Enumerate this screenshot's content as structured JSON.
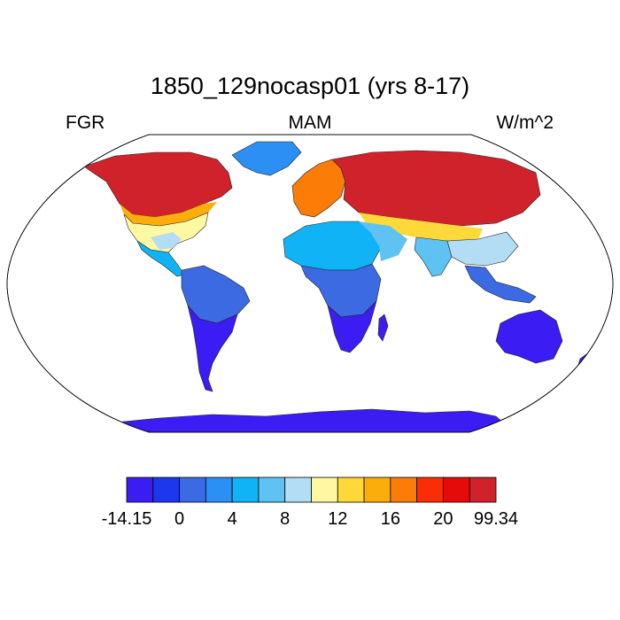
{
  "chart_data": {
    "type": "heatmap",
    "title": "1850_129nocasp01 (yrs 8-17)",
    "subtitle_left": "FGR",
    "subtitle_center": "MAM",
    "subtitle_right": "W/m^2",
    "projection": "Robinson",
    "colorbar": {
      "min_label": "-14.15",
      "max_label": "99.34",
      "boundaries": [
        -14.15,
        -2,
        0,
        2,
        4,
        6,
        8,
        10,
        12,
        14,
        16,
        18,
        20,
        22,
        99.34
      ],
      "tick_labels": [
        "-14.15",
        "0",
        "4",
        "8",
        "12",
        "16",
        "20",
        "99.34"
      ],
      "colors": [
        "#3b1cf2",
        "#1c37ee",
        "#3c6ae2",
        "#2b8ff3",
        "#10b4f6",
        "#5ec3f3",
        "#b2ddf5",
        "#fff8a2",
        "#ffd839",
        "#fbad0a",
        "#fb7c06",
        "#fb2d06",
        "#e70a0a",
        "#d0222b"
      ]
    },
    "regions": [
      {
        "name": "Canada / northern North America",
        "value_range": "18 to 99.34"
      },
      {
        "name": "United States",
        "value_range": "8 to 18"
      },
      {
        "name": "Mexico / Central America",
        "value_range": "4 to 8"
      },
      {
        "name": "South America",
        "value_range": "-14.15 to 2"
      },
      {
        "name": "Greenland",
        "value_range": "2 to 4"
      },
      {
        "name": "Europe",
        "value_range": "10 to 20"
      },
      {
        "name": "Siberia / Central Asia",
        "value_range": "18 to 99.34"
      },
      {
        "name": "Northern Africa / Middle East",
        "value_range": "4 to 10"
      },
      {
        "name": "Southern Africa",
        "value_range": "-14.15 to 2"
      },
      {
        "name": "India / South Asia",
        "value_range": "4 to 10"
      },
      {
        "name": "Southeast Asia",
        "value_range": "2 to 6"
      },
      {
        "name": "Australia",
        "value_range": "-14.15 to -2"
      },
      {
        "name": "Antarctica",
        "value_range": "-14.15 to -2"
      }
    ]
  }
}
